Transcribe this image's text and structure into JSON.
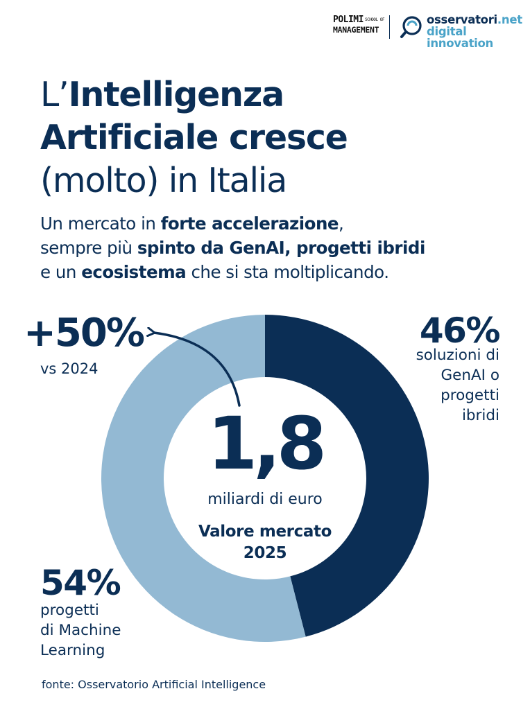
{
  "header": {
    "polimi_line1": "POLIMI",
    "polimi_small": "SCHOOL OF",
    "polimi_line2": "MANAGEMENT",
    "observatory_name": "osservatori",
    "observatory_tld": ".net",
    "observatory_tagline": "digital innovation"
  },
  "title": {
    "prefix": "L’",
    "bold_line1": "Intelligenza",
    "bold_line2": "Artificiale cresce",
    "normal_line3": "(molto) in Italia"
  },
  "subtitle": {
    "p1": "Un mercato in ",
    "b1": "forte accelerazione",
    "p2": ",",
    "p3": "sempre più ",
    "b2": "spinto da GenAI, progetti ibridi",
    "p4": "e un ",
    "b3": "ecosistema",
    "p5": " che si sta moltiplicando."
  },
  "center": {
    "value": "1,8",
    "unit": "miliardi di euro",
    "caption_line1": "Valore mercato",
    "caption_line2": "2025"
  },
  "growth": {
    "value": "+50%",
    "note": "vs 2024"
  },
  "genai": {
    "value": "46%",
    "label_lines": [
      "soluzioni di",
      "GenAI o",
      "progetti",
      "ibridi"
    ]
  },
  "ml": {
    "value": "54%",
    "label_lines": [
      "progetti",
      "di Machine",
      "Learning"
    ]
  },
  "source": "fonte: Osservatorio Artificial Intelligence",
  "colors": {
    "navy": "#0b2e55",
    "light_blue": "#93b9d3",
    "accent": "#4aa3c8"
  },
  "chart_data": {
    "type": "pie",
    "title": "Valore mercato 2025",
    "center_label": "1,8 miliardi di euro",
    "categories": [
      "soluzioni di GenAI o progetti ibridi",
      "progetti di Machine Learning"
    ],
    "values": [
      46,
      54
    ],
    "unit": "%",
    "annotations": [
      "+50% vs 2024"
    ]
  }
}
